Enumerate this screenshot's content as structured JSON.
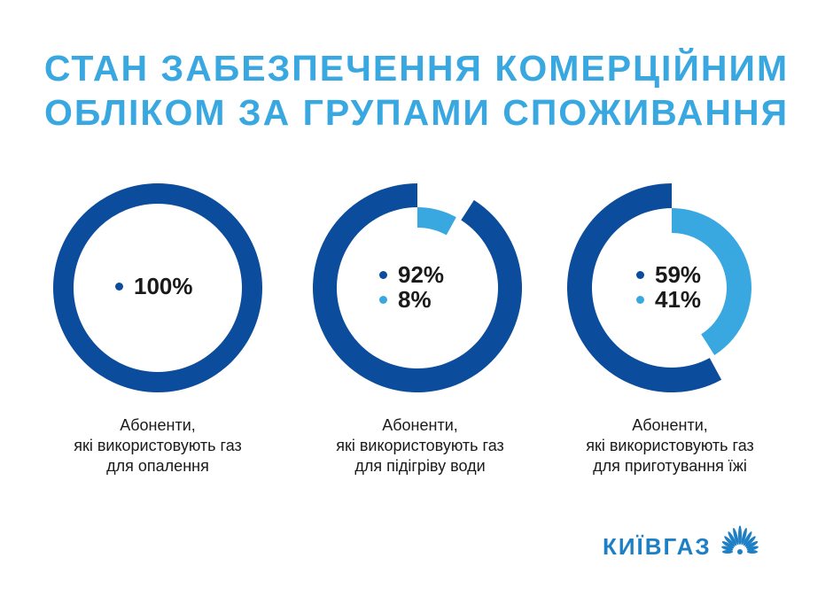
{
  "title": {
    "line1": "СТАН ЗАБЕЗПЕЧЕННЯ КОМЕРЦІЙНИМ",
    "line2": "ОБЛІКОМ ЗА ГРУПАМИ СПОЖИВАННЯ"
  },
  "colors": {
    "dark": "#0b4c9c",
    "light": "#3aa8e0",
    "title": "#3aa8e0",
    "text": "#1a1a1a",
    "logo": "#1e7fc4"
  },
  "chart_data": [
    {
      "type": "pie",
      "donut": true,
      "labels": [
        "100%"
      ],
      "values": [
        100
      ],
      "colors": [
        "#0b4c9c"
      ],
      "caption": [
        "Абоненти,",
        "які використовують газ",
        "для опалення"
      ]
    },
    {
      "type": "pie",
      "donut": true,
      "labels": [
        "92%",
        "8%"
      ],
      "values": [
        92,
        8
      ],
      "colors": [
        "#0b4c9c",
        "#3aa8e0"
      ],
      "caption": [
        "Абоненти,",
        "які використовують газ",
        "для підігріву води"
      ]
    },
    {
      "type": "pie",
      "donut": true,
      "labels": [
        "59%",
        "41%"
      ],
      "values": [
        59,
        41
      ],
      "colors": [
        "#0b4c9c",
        "#3aa8e0"
      ],
      "caption": [
        "Абоненти,",
        "які використовують газ",
        "для приготування їжі"
      ]
    }
  ],
  "logo": {
    "text": "КИЇВГАЗ",
    "icon": "flower-burst-icon"
  }
}
